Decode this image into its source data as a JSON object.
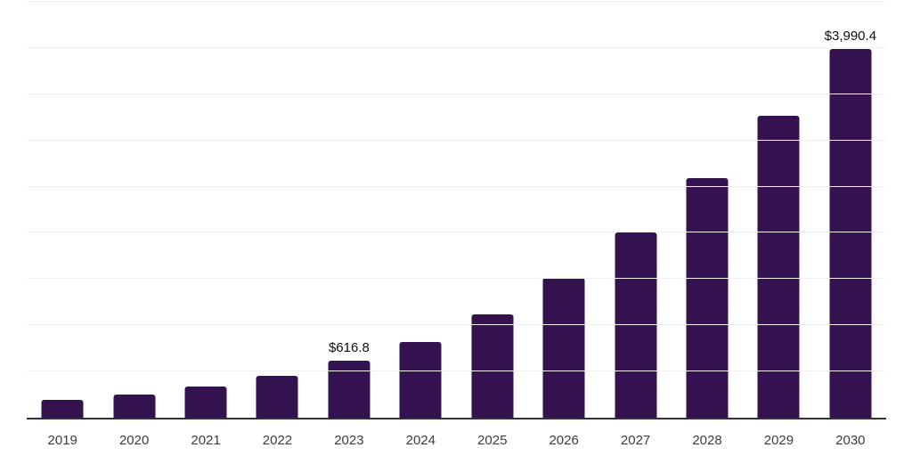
{
  "chart_data": {
    "type": "bar",
    "title": "",
    "xlabel": "",
    "ylabel": "",
    "categories": [
      "2019",
      "2020",
      "2021",
      "2022",
      "2023",
      "2024",
      "2025",
      "2026",
      "2027",
      "2028",
      "2029",
      "2030"
    ],
    "values": [
      190,
      248,
      337,
      450,
      616.8,
      815,
      1120,
      1510,
      2005,
      2592,
      3268,
      3990.4
    ],
    "value_labels": [
      {
        "category_index": 4,
        "text": "$616.8"
      },
      {
        "category_index": 11,
        "text": "$3,990.4"
      }
    ],
    "ylim": [
      0,
      4500
    ],
    "gridline_step": 500,
    "grid": "horizontal-only",
    "legend_position": "none",
    "bar_color": "#34114F",
    "gridline_color": "#f1f1f1",
    "axis_line_color": "#333333",
    "tick_label_color": "#3d3d3d",
    "value_label_color": "#0f0f0f"
  }
}
